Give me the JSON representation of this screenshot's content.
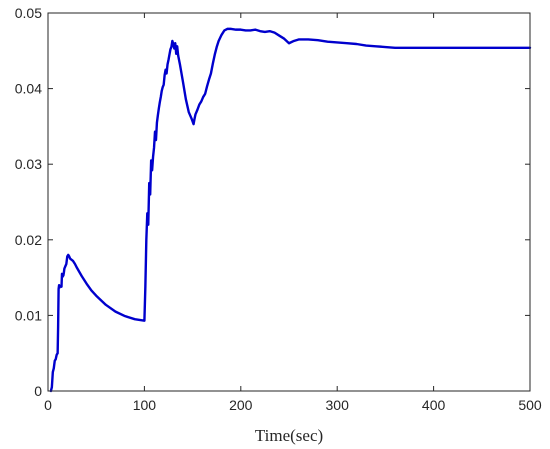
{
  "chart_data": {
    "type": "line",
    "title": "",
    "xlabel": "Time(sec)",
    "ylabel": "",
    "xlim": [
      0,
      500
    ],
    "ylim": [
      0,
      0.05
    ],
    "x_ticks": [
      0,
      100,
      200,
      300,
      400,
      500
    ],
    "y_ticks": [
      0,
      0.01,
      0.02,
      0.03,
      0.04,
      0.05
    ],
    "x_tick_labels": [
      "0",
      "100",
      "200",
      "300",
      "400",
      "500"
    ],
    "y_tick_labels": [
      "0",
      "0.01",
      "0.02",
      "0.03",
      "0.04",
      "0.05"
    ],
    "grid": false,
    "series": [
      {
        "color": "#0000CD",
        "x": [
          3,
          4,
          5,
          6,
          7,
          8,
          9,
          10,
          10.5,
          11,
          11.5,
          12,
          13,
          14,
          14.5,
          15,
          16,
          16.5,
          17,
          18,
          19,
          20,
          21,
          22,
          23,
          24,
          26,
          28,
          30,
          35,
          40,
          45,
          50,
          60,
          70,
          80,
          90,
          100,
          101,
          102,
          103,
          104,
          105,
          106,
          107,
          108,
          109,
          110,
          111,
          112,
          113,
          114,
          115,
          116,
          117,
          118,
          119,
          120,
          121,
          122,
          123,
          124,
          125,
          126,
          127,
          128,
          129,
          130,
          131,
          132,
          133,
          134,
          135,
          137,
          140,
          143,
          146,
          149,
          151,
          152,
          153,
          155,
          157,
          159,
          161,
          163,
          165,
          167,
          169,
          171,
          173,
          175,
          177,
          180,
          183,
          186,
          190,
          195,
          200,
          205,
          210,
          215,
          220,
          225,
          230,
          235,
          240,
          245,
          250,
          255,
          260,
          270,
          280,
          290,
          300,
          310,
          320,
          330,
          340,
          350,
          360,
          370,
          380,
          390,
          400,
          410,
          420,
          430,
          440,
          450,
          460,
          470,
          480,
          490,
          500
        ],
        "y": [
          0,
          0.0005,
          0.0025,
          0.003,
          0.004,
          0.0042,
          0.0048,
          0.005,
          0.0085,
          0.0135,
          0.014,
          0.0137,
          0.0139,
          0.0138,
          0.0155,
          0.0151,
          0.0153,
          0.0157,
          0.0162,
          0.0165,
          0.0168,
          0.0178,
          0.018,
          0.0178,
          0.0175,
          0.0174,
          0.0172,
          0.0168,
          0.0163,
          0.0152,
          0.0142,
          0.0133,
          0.0126,
          0.0114,
          0.0105,
          0.0099,
          0.0095,
          0.0093,
          0.0138,
          0.02,
          0.0235,
          0.022,
          0.0275,
          0.026,
          0.0305,
          0.0292,
          0.031,
          0.0322,
          0.0343,
          0.0332,
          0.0355,
          0.0365,
          0.0374,
          0.0382,
          0.0389,
          0.0397,
          0.0402,
          0.0405,
          0.0418,
          0.0425,
          0.042,
          0.0432,
          0.0438,
          0.0445,
          0.0452,
          0.0455,
          0.0463,
          0.0459,
          0.0453,
          0.046,
          0.0446,
          0.0456,
          0.0444,
          0.0431,
          0.0409,
          0.0386,
          0.0369,
          0.036,
          0.0353,
          0.036,
          0.0366,
          0.0372,
          0.0379,
          0.0383,
          0.0389,
          0.0393,
          0.0403,
          0.0412,
          0.042,
          0.0433,
          0.0445,
          0.0455,
          0.0463,
          0.0471,
          0.0477,
          0.0479,
          0.0479,
          0.0478,
          0.0478,
          0.0477,
          0.0477,
          0.0478,
          0.0476,
          0.0475,
          0.0476,
          0.0474,
          0.047,
          0.0466,
          0.046,
          0.0463,
          0.0465,
          0.0465,
          0.0464,
          0.0462,
          0.0461,
          0.046,
          0.0459,
          0.0457,
          0.0456,
          0.0455,
          0.0454,
          0.0454,
          0.0454,
          0.0454,
          0.0454,
          0.0454,
          0.0454,
          0.0454,
          0.0454,
          0.0454,
          0.0454,
          0.0454,
          0.0454,
          0.0454,
          0.0454
        ]
      }
    ]
  }
}
